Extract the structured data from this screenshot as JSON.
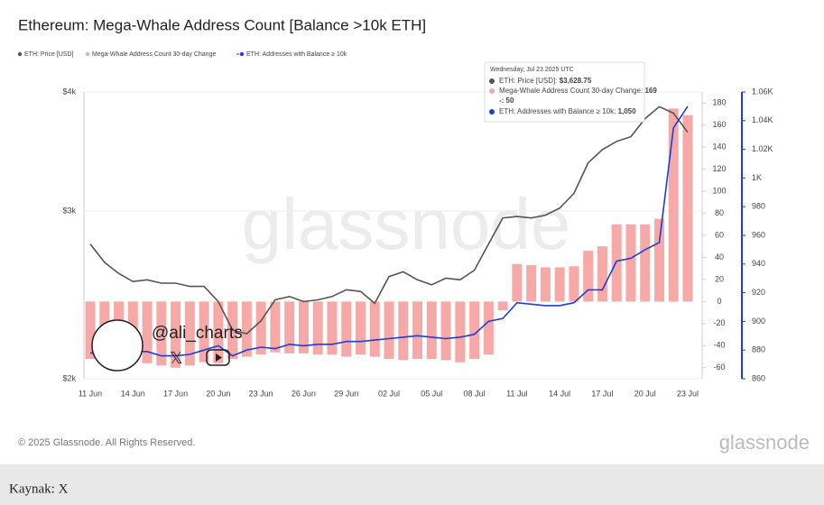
{
  "chart_data": {
    "type": "combo",
    "title": "Ethereum: Mega-Whale Address Count [Balance >10k ETH]",
    "categories": [
      "11 Jun",
      null,
      null,
      "14 Jun",
      null,
      null,
      "17 Jun",
      null,
      null,
      "20 Jun",
      null,
      null,
      "23 Jun",
      null,
      null,
      "26 Jun",
      null,
      null,
      "29 Jun",
      null,
      null,
      "02 Jul",
      null,
      null,
      "05 Jul",
      null,
      null,
      "08 Jul",
      null,
      null,
      "11 Jul",
      null,
      null,
      "14 Jul",
      null,
      null,
      "17 Jul",
      null,
      null,
      "20 Jul",
      null,
      null,
      "23 Jul"
    ],
    "ylim": [
      2000,
      4000
    ],
    "ylog": true,
    "yticks": [
      {
        "value": 2000,
        "label": "$2k"
      },
      {
        "value": 3000,
        "label": "$3k"
      },
      {
        "value": 4000,
        "label": "$4k"
      }
    ],
    "y2lim": [
      -70,
      190
    ],
    "y2ticks": [
      -60,
      -40,
      -20,
      0,
      20,
      40,
      60,
      80,
      100,
      120,
      140,
      160,
      180
    ],
    "y3lim": [
      860,
      1060
    ],
    "y3ticks": [
      860,
      880,
      900,
      920,
      940,
      960,
      980,
      {
        "value": 1000,
        "label": "1K"
      },
      {
        "value": 1020,
        "label": "1.02K"
      },
      {
        "value": 1040,
        "label": "1.04K"
      },
      {
        "value": 1060,
        "label": "1.06K"
      }
    ],
    "grid": true,
    "series": [
      {
        "name": "ETH: Price [USD]",
        "type": "line",
        "axis": "y",
        "color": "#555555",
        "values": [
          2770,
          2650,
          2580,
          2530,
          2540,
          2520,
          2520,
          2500,
          2500,
          2410,
          2250,
          2230,
          2300,
          2420,
          2440,
          2410,
          2420,
          2440,
          2480,
          2470,
          2400,
          2560,
          2590,
          2540,
          2510,
          2550,
          2540,
          2600,
          2770,
          2950,
          2960,
          2950,
          2970,
          3020,
          3130,
          3370,
          3480,
          3550,
          3590,
          3750,
          3860,
          3800,
          3628.75
        ]
      },
      {
        "name": "Mega-Whale Address Count 30-day Change",
        "type": "bar",
        "axis": "y2",
        "color": "#f7a9a8",
        "values": [
          -52,
          -50,
          -52,
          -55,
          -56,
          -58,
          -60,
          -58,
          -55,
          -56,
          -52,
          -50,
          -48,
          -46,
          -47,
          -47,
          -48,
          -48,
          -50,
          -48,
          -50,
          -52,
          -53,
          -52,
          -52,
          -53,
          -55,
          -52,
          -48,
          -8,
          34,
          33,
          31,
          31,
          32,
          46,
          50,
          70,
          70,
          70,
          75,
          175,
          169
        ]
      },
      {
        "name": "ETH: Addresses with Balance ≥ 10k",
        "type": "line",
        "axis": "y3",
        "color": "#1b3fd8",
        "values": [
          878,
          878,
          877,
          879,
          879,
          876,
          876,
          877,
          880,
          883,
          876,
          880,
          882,
          881,
          884,
          883,
          884,
          884,
          886,
          886,
          887,
          888,
          889,
          890,
          889,
          888,
          889,
          891,
          900,
          902,
          913,
          912,
          911,
          911,
          913,
          922,
          922,
          942,
          944,
          950,
          955,
          1035,
          1050
        ]
      }
    ],
    "tooltip": {
      "date": "Wednesday, Jul 23 2025 UTC",
      "items": [
        {
          "label": "ETH: Price [USD]:",
          "value": "$3,628.75"
        },
        {
          "label": "Mega-Whale Address Count 30-day Change:",
          "value": "169",
          "extra": "-: 50"
        },
        {
          "label": "ETH: Addresses with Balance ≥ 10k:",
          "value": "1,050"
        }
      ]
    },
    "watermark": "glassnode",
    "overlay_handle": "@ali_charts"
  },
  "footer": {
    "copyright": "© 2025 Glassnode. All Rights Reserved.",
    "logo": "glassnode"
  },
  "source": "Kaynak: X"
}
